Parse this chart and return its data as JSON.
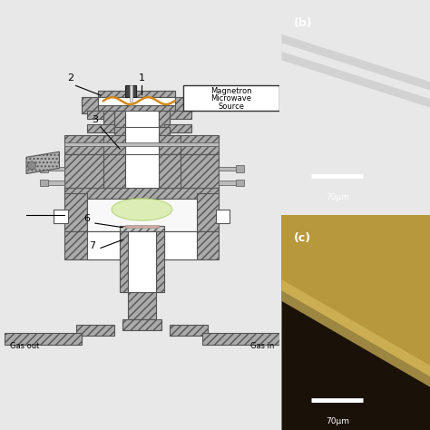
{
  "bg_color": "#e8e8e8",
  "diagram_bg": "#ffffff",
  "right_panel_bg": "#050510",
  "orange_wave": "#d4881a",
  "green_plasma_fc": "#d8edaa",
  "green_plasma_ec": "#b0d070",
  "metal_fc": "#aaaaaa",
  "metal_ec": "#555555",
  "white_space": "#ffffff",
  "light_metal": "#cccccc",
  "magnetron_box_text": [
    "Magnetron",
    "Microwave",
    "Source"
  ],
  "scale_label": "70μm",
  "panel_b_label": "(b)",
  "panel_c_label": "(c)",
  "gas_out": "Gas out",
  "gas_in": "Gas in",
  "hatch_style": "////",
  "lw": 0.8
}
